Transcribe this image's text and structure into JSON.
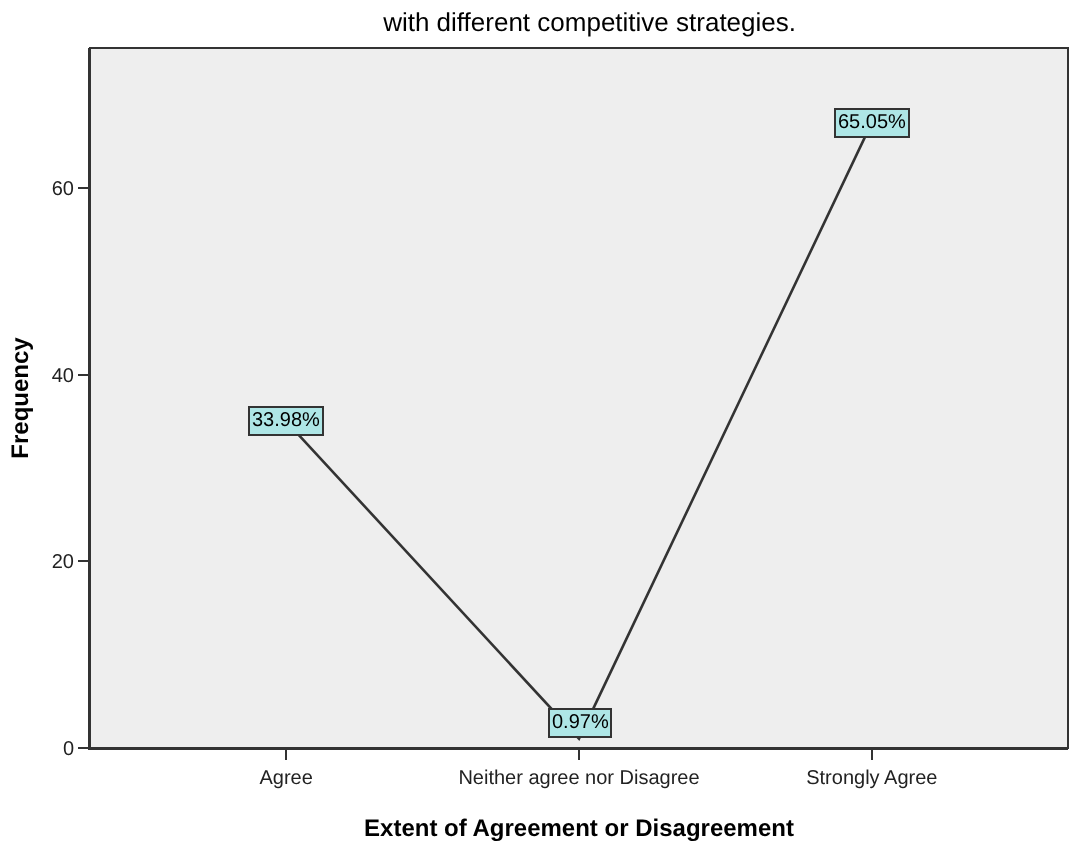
{
  "chart_data": {
    "type": "line",
    "title": "with different competitive strategies.",
    "xlabel": "Extent of Agreement or Disagreement",
    "ylabel": "Frequency",
    "categories": [
      "Agree",
      "Neither agree nor Disagree",
      "Strongly Agree"
    ],
    "series": [
      {
        "color": "#333333",
        "values": [
          35,
          1,
          67
        ]
      }
    ],
    "annotations": [
      {
        "text": "33.98%",
        "x": "Agree",
        "y": 35
      },
      {
        "text": "0.97%",
        "x": "Neither agree nor Disagree",
        "y": 1
      },
      {
        "text": "65.05%",
        "x": "Strongly Agree",
        "y": 67
      }
    ],
    "ylim": [
      0,
      75
    ],
    "yticks": [
      0,
      20,
      40,
      60
    ],
    "grid": false,
    "line_style": "solid"
  }
}
